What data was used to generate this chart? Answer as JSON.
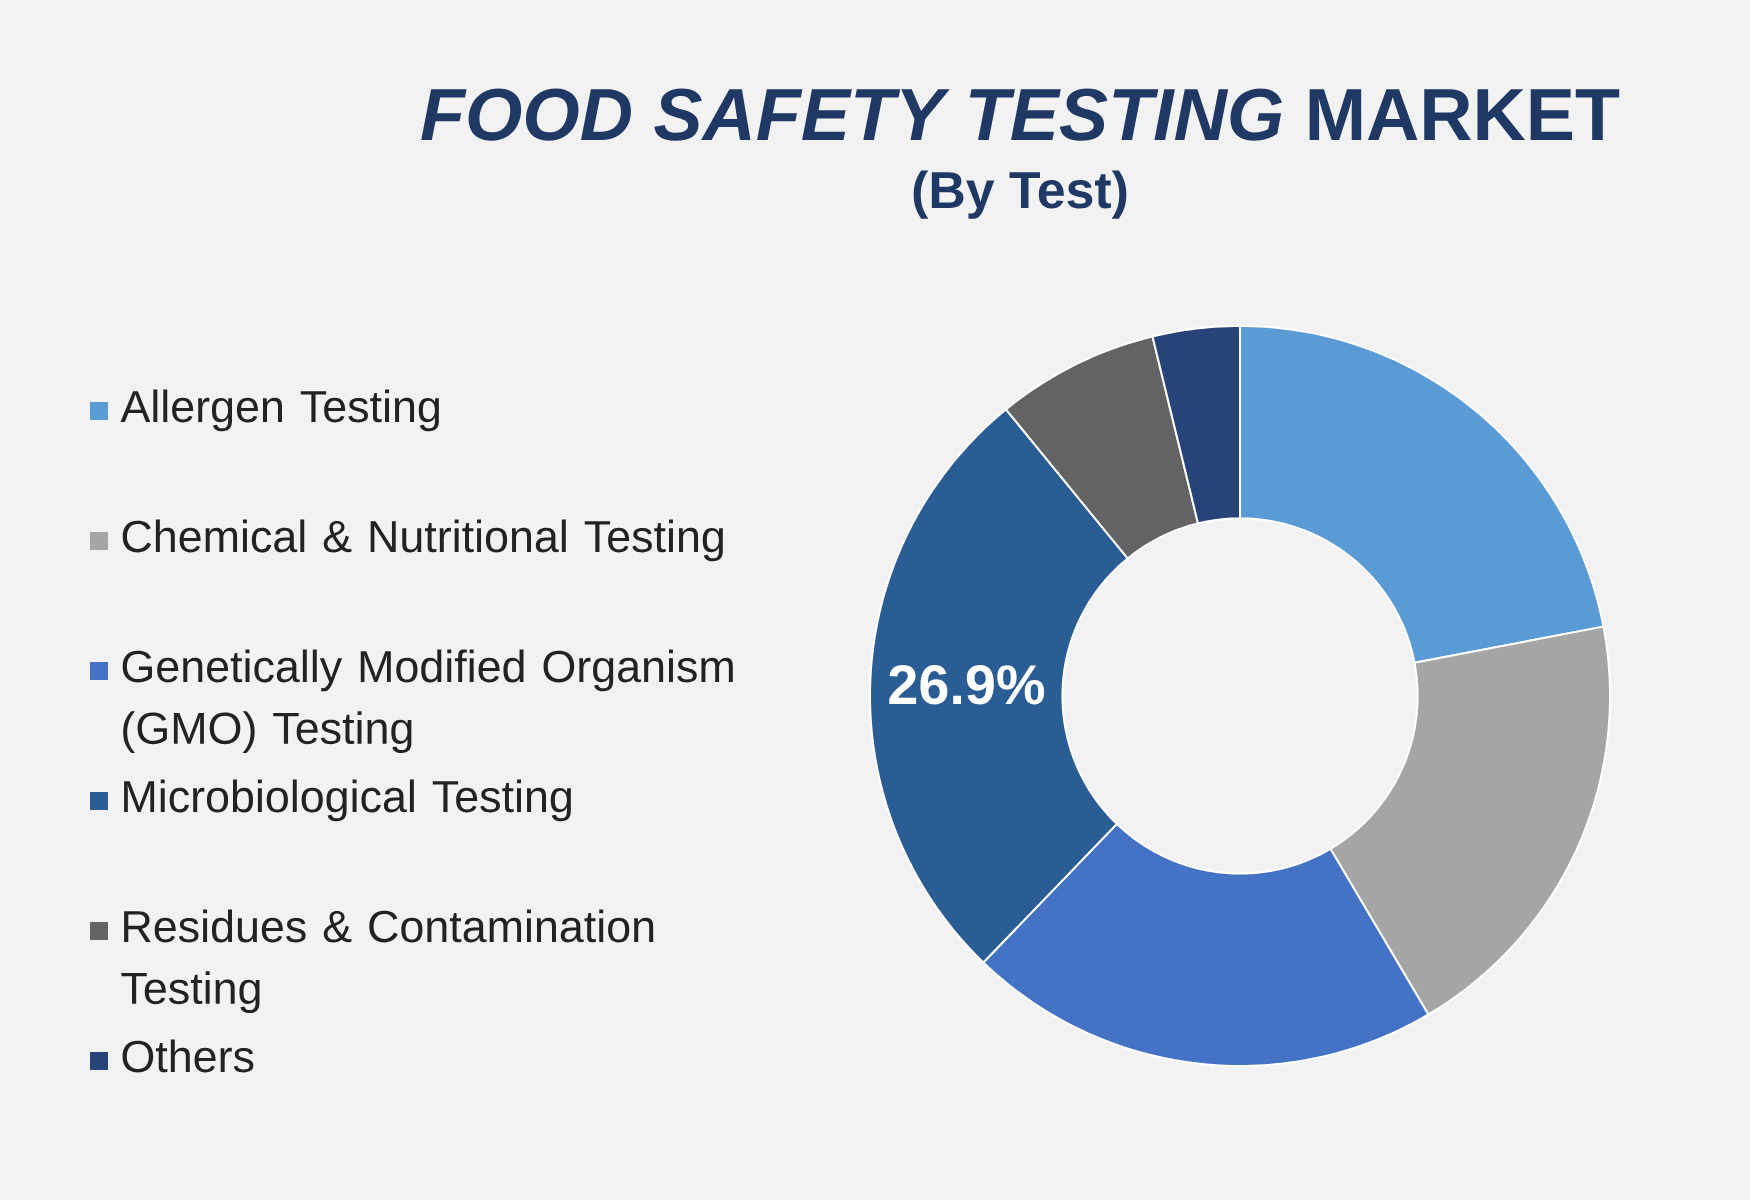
{
  "chart_data": {
    "type": "donut",
    "title": "*FOOD SAFETY TESTING* MARKET",
    "subtitle": "(By Test)",
    "categories": [
      "Allergen Testing",
      "Chemical & Nutritional Testing",
      "Genetically Modified Organism (GMO) Testing",
      "Microbiological Testing",
      "Residues & Contamination Testing",
      "Others"
    ],
    "values": [
      22.0,
      19.5,
      20.7,
      26.9,
      7.1,
      3.8
    ],
    "colors": [
      "#5b9bd5",
      "#a5a5a5",
      "#4472c4",
      "#2a5d94",
      "#636363",
      "#264478"
    ],
    "value_labels": [
      null,
      null,
      null,
      "26.9%",
      null,
      null
    ],
    "legend": "left"
  }
}
